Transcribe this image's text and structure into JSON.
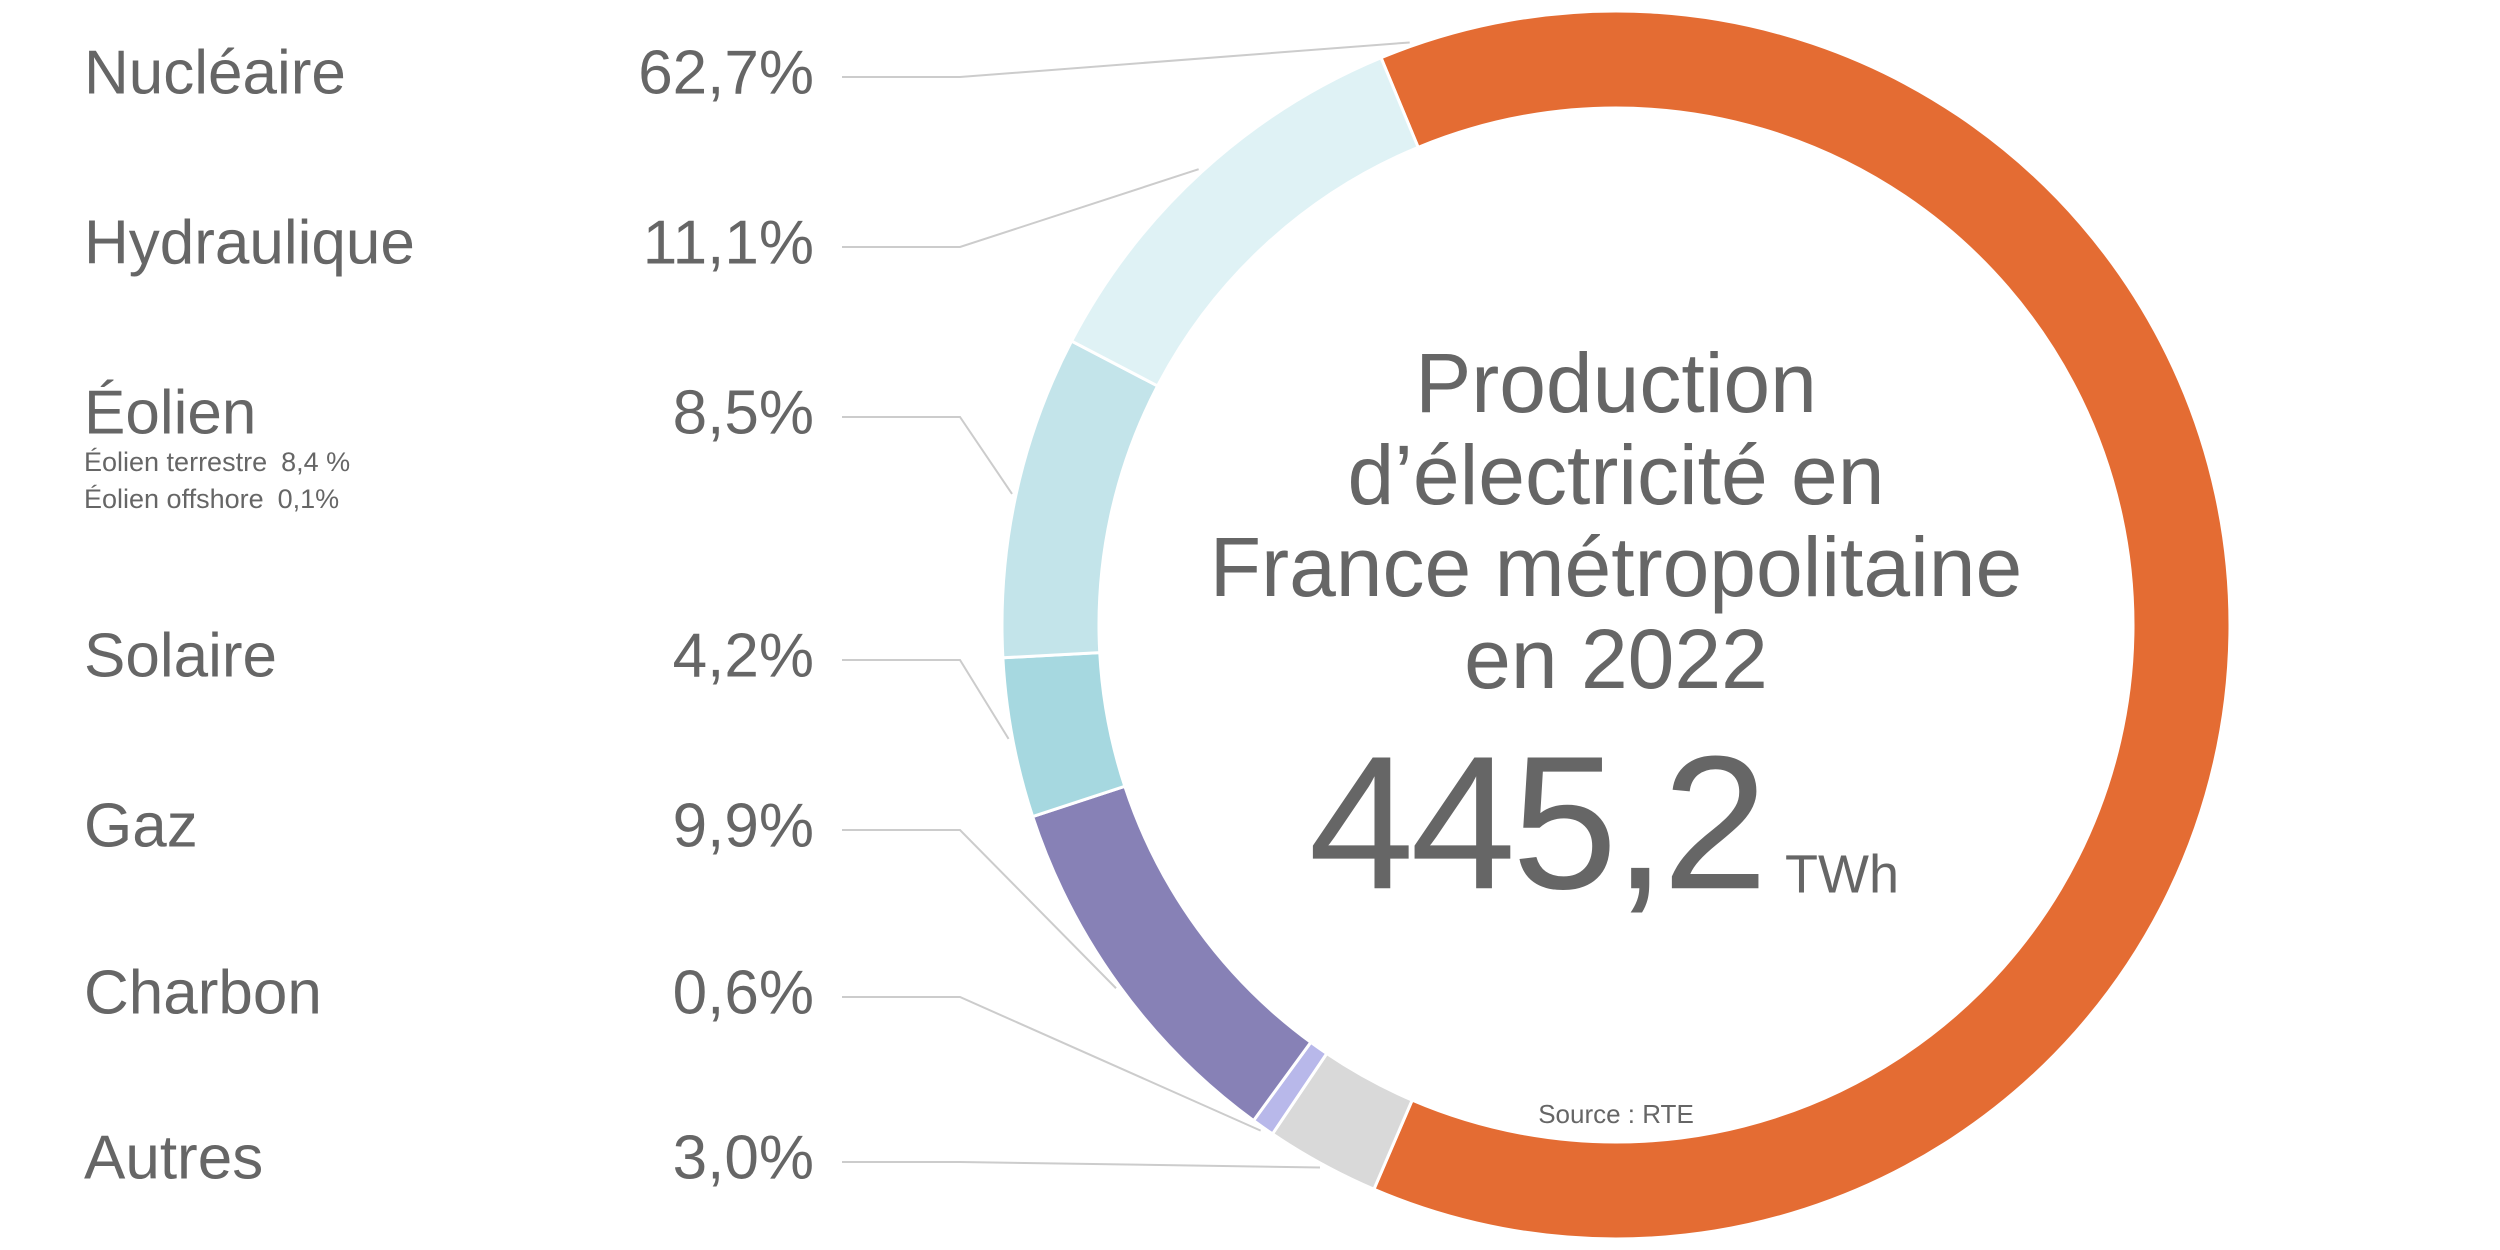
{
  "chart_data": {
    "type": "donut",
    "title": [
      "Production",
      "d’électricité en",
      "France métropolitaine",
      "en 2022"
    ],
    "total": 445.2,
    "total_label": "445,2",
    "unit": "TWh",
    "source": "Source : RTE",
    "categories": [
      "Nucléaire",
      "Hydraulique",
      "Éolien",
      "Solaire",
      "Gaz",
      "Charbon",
      "Autres"
    ],
    "values": [
      62.7,
      11.1,
      8.5,
      4.2,
      9.9,
      0.6,
      3.0
    ],
    "value_labels": [
      "62,7%",
      "11,1%",
      "8,5%",
      "4,2%",
      "9,9%",
      "0,6%",
      "3,0%"
    ],
    "colors": [
      "#e46c33",
      "#dff2f5",
      "#c3e4ea",
      "#a6d8e0",
      "#8781b6",
      "#b8b8ea",
      "#d9d9d9"
    ],
    "eolien_breakdown": [
      {
        "name": "Éolien terrestre",
        "value": 8.4,
        "value_label": "8,4 %"
      },
      {
        "name": "Éolien offshore",
        "value": 0.1,
        "value_label": "0,1%"
      }
    ]
  }
}
